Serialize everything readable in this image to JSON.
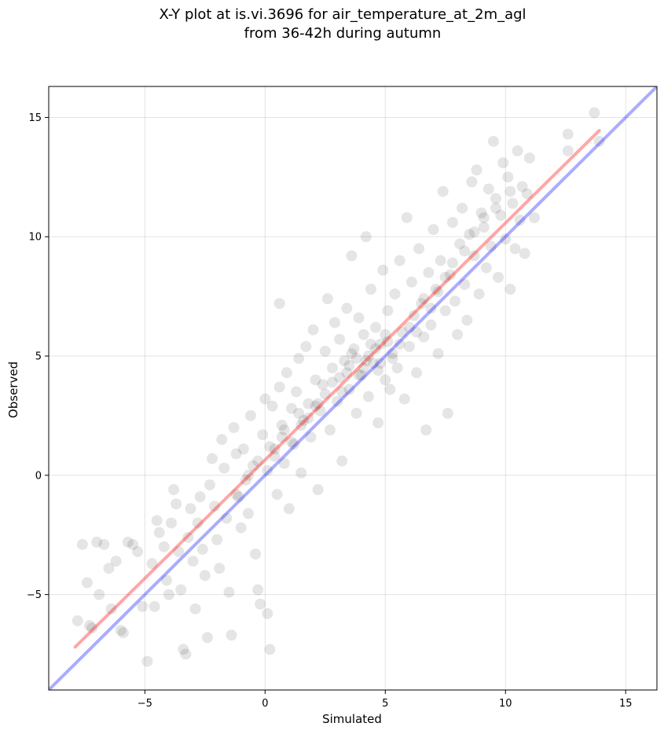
{
  "chart_data": {
    "type": "scatter",
    "title_line1": "X-Y plot at is.vi.3696 for air_temperature_at_2m_agl",
    "title_line2": "from 36-42h during autumn",
    "xlabel": "Simulated",
    "ylabel": "Observed",
    "xlim": [
      -9,
      16.3
    ],
    "ylim": [
      -9,
      16.3
    ],
    "x_ticks": [
      -5,
      0,
      5,
      10,
      15
    ],
    "y_ticks": [
      -5,
      0,
      5,
      10,
      15
    ],
    "x_tick_labels": [
      "−5",
      "0",
      "5",
      "10",
      "15"
    ],
    "y_tick_labels": [
      "−5",
      "0",
      "5",
      "10",
      "15"
    ],
    "grid": true,
    "point_color": "#000000",
    "point_opacity": 0.1,
    "fit_line": {
      "color": "#ff0000",
      "x": [
        -7.9,
        13.9
      ],
      "y": [
        -7.2,
        14.45
      ]
    },
    "identity_line": {
      "color": "#0000ff",
      "x": [
        -9,
        16.3
      ],
      "y": [
        -9,
        16.3
      ]
    },
    "points": [
      [
        -7.8,
        -6.1
      ],
      [
        -7.6,
        -2.9
      ],
      [
        -7.4,
        -4.5
      ],
      [
        -7.3,
        -6.3
      ],
      [
        -7.2,
        -6.4
      ],
      [
        -7.0,
        -2.8
      ],
      [
        -6.9,
        -5.0
      ],
      [
        -6.7,
        -2.9
      ],
      [
        -6.5,
        -3.9
      ],
      [
        -6.4,
        -5.6
      ],
      [
        -6.2,
        -3.6
      ],
      [
        -6.0,
        -6.5
      ],
      [
        -5.9,
        -6.6
      ],
      [
        -5.7,
        -2.8
      ],
      [
        -5.5,
        -2.9
      ],
      [
        -5.3,
        -3.2
      ],
      [
        -5.1,
        -5.5
      ],
      [
        -4.9,
        -7.8
      ],
      [
        -4.7,
        -3.7
      ],
      [
        -4.6,
        -5.5
      ],
      [
        -4.5,
        -1.9
      ],
      [
        -4.4,
        -2.4
      ],
      [
        -4.2,
        -3.0
      ],
      [
        -4.1,
        -4.4
      ],
      [
        -4.0,
        -5.0
      ],
      [
        -3.9,
        -2.0
      ],
      [
        -3.8,
        -0.6
      ],
      [
        -3.7,
        -1.2
      ],
      [
        -3.6,
        -3.2
      ],
      [
        -3.5,
        -4.8
      ],
      [
        -3.4,
        -7.3
      ],
      [
        -3.3,
        -7.5
      ],
      [
        -3.2,
        -2.6
      ],
      [
        -3.1,
        -1.4
      ],
      [
        -3.0,
        -3.6
      ],
      [
        -2.9,
        -5.6
      ],
      [
        -2.8,
        -2.0
      ],
      [
        -2.7,
        -0.9
      ],
      [
        -2.6,
        -3.1
      ],
      [
        -2.5,
        -4.2
      ],
      [
        -2.4,
        -6.8
      ],
      [
        -2.3,
        -0.4
      ],
      [
        -2.2,
        0.7
      ],
      [
        -2.1,
        -1.3
      ],
      [
        -2.0,
        -2.7
      ],
      [
        -1.9,
        -3.9
      ],
      [
        -1.8,
        1.5
      ],
      [
        -1.7,
        0.3
      ],
      [
        -1.6,
        -1.8
      ],
      [
        -1.5,
        -4.9
      ],
      [
        -1.4,
        -6.7
      ],
      [
        -1.3,
        2.0
      ],
      [
        -1.2,
        0.9
      ],
      [
        -1.1,
        -0.9
      ],
      [
        -1.0,
        -2.2
      ],
      [
        -0.9,
        1.1
      ],
      [
        -0.8,
        -0.2
      ],
      [
        -0.7,
        -1.6
      ],
      [
        -0.6,
        2.5
      ],
      [
        -0.5,
        0.4
      ],
      [
        -0.4,
        -3.3
      ],
      [
        -0.3,
        -4.8
      ],
      [
        -0.2,
        -5.4
      ],
      [
        -0.1,
        1.7
      ],
      [
        0.0,
        3.2
      ],
      [
        0.1,
        0.2
      ],
      [
        0.1,
        -5.8
      ],
      [
        0.2,
        -7.3
      ],
      [
        0.3,
        2.9
      ],
      [
        0.4,
        1.1
      ],
      [
        0.5,
        -0.8
      ],
      [
        0.6,
        3.7
      ],
      [
        0.6,
        7.2
      ],
      [
        0.7,
        2.1
      ],
      [
        0.8,
        0.5
      ],
      [
        0.9,
        4.3
      ],
      [
        1.0,
        -1.4
      ],
      [
        1.1,
        2.8
      ],
      [
        1.2,
        1.3
      ],
      [
        1.3,
        3.5
      ],
      [
        1.4,
        4.9
      ],
      [
        1.5,
        0.1
      ],
      [
        1.6,
        2.3
      ],
      [
        1.7,
        5.4
      ],
      [
        1.8,
        3.0
      ],
      [
        1.9,
        1.6
      ],
      [
        2.0,
        6.1
      ],
      [
        2.1,
        4.0
      ],
      [
        2.2,
        -0.6
      ],
      [
        2.3,
        2.7
      ],
      [
        2.4,
        3.8
      ],
      [
        2.5,
        5.2
      ],
      [
        2.6,
        7.4
      ],
      [
        2.7,
        1.9
      ],
      [
        2.8,
        4.5
      ],
      [
        2.9,
        6.4
      ],
      [
        3.0,
        3.1
      ],
      [
        3.1,
        5.7
      ],
      [
        3.2,
        0.6
      ],
      [
        3.3,
        4.8
      ],
      [
        3.4,
        7.0
      ],
      [
        3.5,
        3.6
      ],
      [
        3.6,
        9.2
      ],
      [
        3.7,
        5.3
      ],
      [
        3.8,
        2.6
      ],
      [
        3.9,
        6.6
      ],
      [
        4.0,
        4.2
      ],
      [
        4.1,
        5.9
      ],
      [
        4.2,
        10.0
      ],
      [
        4.3,
        3.3
      ],
      [
        4.4,
        7.8
      ],
      [
        4.5,
        4.7
      ],
      [
        4.6,
        6.2
      ],
      [
        4.7,
        2.2
      ],
      [
        4.8,
        5.5
      ],
      [
        4.9,
        8.6
      ],
      [
        5.0,
        4.0
      ],
      [
        5.1,
        6.9
      ],
      [
        5.2,
        3.6
      ],
      [
        5.3,
        5.1
      ],
      [
        5.4,
        7.6
      ],
      [
        5.5,
        4.5
      ],
      [
        5.6,
        9.0
      ],
      [
        5.7,
        6.0
      ],
      [
        5.8,
        3.2
      ],
      [
        5.9,
        10.8
      ],
      [
        6.0,
        5.4
      ],
      [
        6.1,
        8.1
      ],
      [
        6.2,
        6.7
      ],
      [
        6.3,
        4.3
      ],
      [
        6.4,
        9.5
      ],
      [
        6.5,
        7.2
      ],
      [
        6.6,
        5.8
      ],
      [
        6.7,
        1.9
      ],
      [
        6.8,
        8.5
      ],
      [
        6.9,
        6.3
      ],
      [
        7.0,
        10.3
      ],
      [
        7.1,
        7.8
      ],
      [
        7.2,
        5.1
      ],
      [
        7.3,
        9.0
      ],
      [
        7.4,
        11.9
      ],
      [
        7.5,
        6.9
      ],
      [
        7.6,
        2.6
      ],
      [
        7.7,
        8.4
      ],
      [
        7.8,
        10.6
      ],
      [
        7.9,
        7.3
      ],
      [
        8.0,
        5.9
      ],
      [
        8.1,
        9.7
      ],
      [
        8.2,
        11.2
      ],
      [
        8.3,
        8.0
      ],
      [
        8.4,
        6.5
      ],
      [
        8.5,
        10.1
      ],
      [
        8.6,
        12.3
      ],
      [
        8.7,
        9.2
      ],
      [
        8.8,
        12.8
      ],
      [
        8.9,
        7.6
      ],
      [
        9.0,
        11.0
      ],
      [
        9.1,
        10.4
      ],
      [
        9.2,
        8.7
      ],
      [
        9.3,
        12.0
      ],
      [
        9.4,
        9.6
      ],
      [
        9.5,
        14.0
      ],
      [
        9.6,
        11.6
      ],
      [
        9.7,
        8.3
      ],
      [
        9.8,
        10.9
      ],
      [
        9.9,
        13.1
      ],
      [
        10.0,
        9.9
      ],
      [
        10.1,
        12.5
      ],
      [
        10.2,
        7.8
      ],
      [
        10.3,
        11.4
      ],
      [
        10.4,
        9.5
      ],
      [
        10.5,
        13.6
      ],
      [
        10.6,
        10.7
      ],
      [
        10.7,
        12.1
      ],
      [
        10.8,
        9.3
      ],
      [
        10.9,
        11.8
      ],
      [
        11.0,
        13.3
      ],
      [
        11.2,
        10.8
      ],
      [
        12.6,
        14.3
      ],
      [
        12.6,
        13.6
      ],
      [
        13.7,
        15.2
      ],
      [
        13.9,
        14.0
      ],
      [
        1.5,
        2.1
      ],
      [
        2.2,
        3.0
      ],
      [
        3.1,
        4.1
      ],
      [
        3.4,
        4.3
      ],
      [
        3.8,
        4.9
      ],
      [
        4.1,
        4.5
      ],
      [
        4.3,
        5.0
      ],
      [
        4.6,
        5.3
      ],
      [
        4.8,
        4.7
      ],
      [
        5.1,
        5.6
      ],
      [
        3.6,
        5.1
      ],
      [
        3.9,
        4.2
      ],
      [
        4.2,
        4.8
      ],
      [
        4.4,
        5.5
      ],
      [
        4.7,
        4.4
      ],
      [
        5.0,
        5.9
      ],
      [
        5.3,
        4.9
      ],
      [
        5.6,
        5.5
      ],
      [
        6.0,
        6.2
      ],
      [
        6.3,
        6.0
      ],
      [
        0.4,
        0.8
      ],
      [
        0.8,
        1.9
      ],
      [
        1.1,
        1.4
      ],
      [
        1.4,
        2.6
      ],
      [
        1.8,
        2.4
      ],
      [
        2.1,
        2.9
      ],
      [
        2.5,
        3.4
      ],
      [
        2.8,
        3.9
      ],
      [
        3.2,
        3.5
      ],
      [
        3.5,
        4.6
      ],
      [
        -1.2,
        -0.8
      ],
      [
        -0.7,
        0.0
      ],
      [
        -0.3,
        0.6
      ],
      [
        0.2,
        1.2
      ],
      [
        0.7,
        1.6
      ],
      [
        6.6,
        7.4
      ],
      [
        6.9,
        7.0
      ],
      [
        7.2,
        7.7
      ],
      [
        7.5,
        8.3
      ],
      [
        7.8,
        8.9
      ],
      [
        8.3,
        9.4
      ],
      [
        8.7,
        10.2
      ],
      [
        9.1,
        10.8
      ],
      [
        9.6,
        11.2
      ],
      [
        10.2,
        11.9
      ]
    ]
  }
}
